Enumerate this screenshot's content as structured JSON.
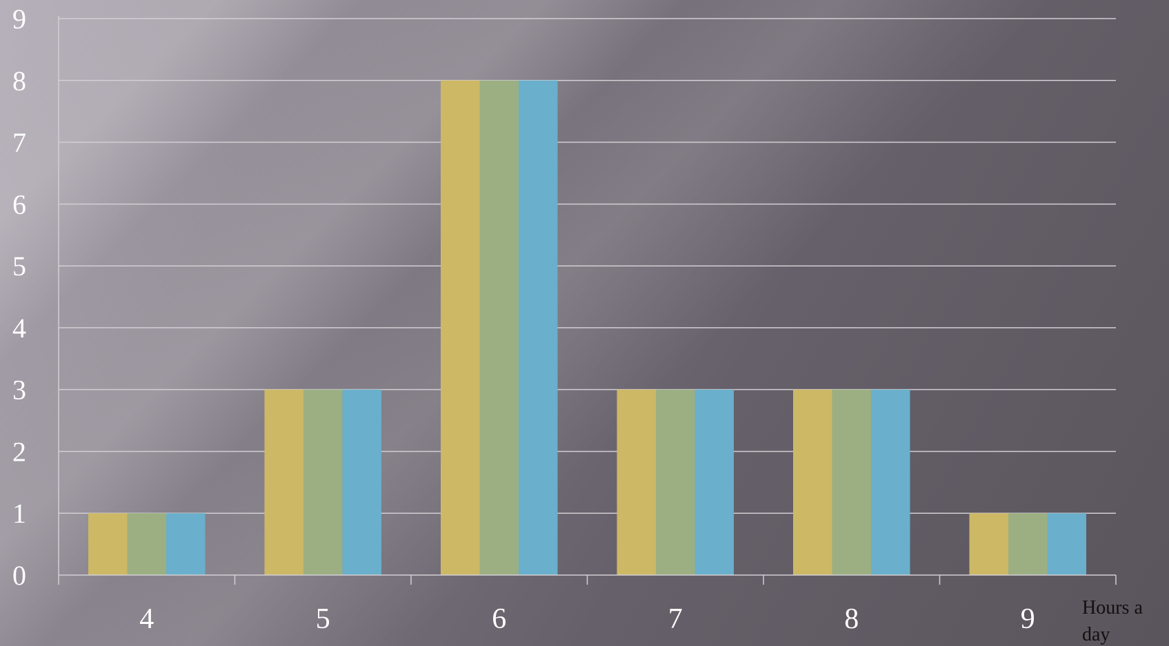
{
  "chart_data": {
    "type": "bar",
    "categories": [
      "4",
      "5",
      "6",
      "7",
      "8",
      "9"
    ],
    "series": [
      {
        "values": [
          1,
          3,
          8,
          3,
          3,
          1
        ],
        "color": "#cdb865"
      },
      {
        "values": [
          1,
          3,
          8,
          3,
          3,
          1
        ],
        "color": "#9caf82"
      },
      {
        "values": [
          1,
          3,
          8,
          3,
          3,
          1
        ],
        "color": "#6aafcb"
      }
    ],
    "title": "",
    "xlabel": "Hours a day",
    "ylabel": "",
    "ylim": [
      0,
      9
    ],
    "yticks": [
      "0",
      "1",
      "2",
      "3",
      "4",
      "5",
      "6",
      "7",
      "8",
      "9"
    ],
    "grid": true,
    "legend": "none"
  }
}
